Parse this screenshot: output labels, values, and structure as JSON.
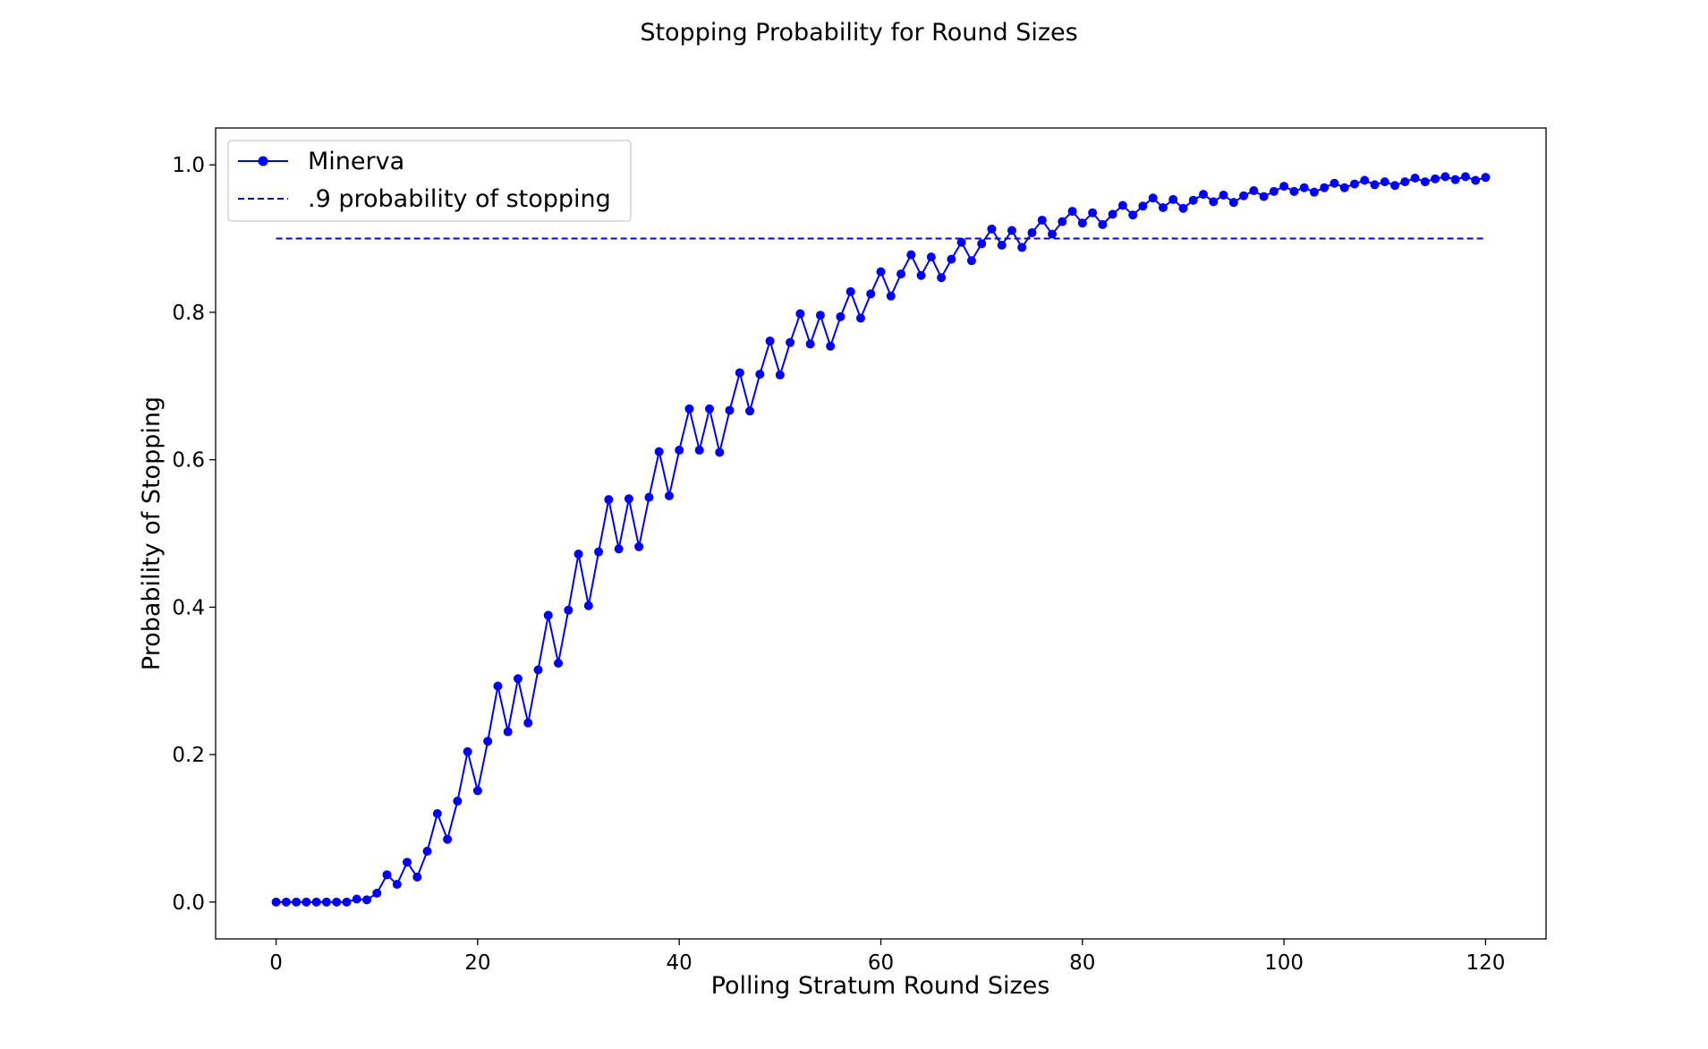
{
  "chart_data": {
    "type": "line",
    "title": "Stopping Probability for Round Sizes",
    "xlabel": "Polling Stratum Round Sizes",
    "ylabel": "Probability of Stopping",
    "xlim": [
      -6,
      126
    ],
    "ylim": [
      -0.05,
      1.05
    ],
    "xticks": [
      0,
      20,
      40,
      60,
      80,
      100,
      120
    ],
    "xtick_labels": [
      "0",
      "20",
      "40",
      "60",
      "80",
      "100",
      "120"
    ],
    "yticks": [
      0.0,
      0.2,
      0.4,
      0.6,
      0.8,
      1.0
    ],
    "ytick_labels": [
      "0.0",
      "0.2",
      "0.4",
      "0.6",
      "0.8",
      "1.0"
    ],
    "grid": false,
    "legend_position": "top-left",
    "series": [
      {
        "name": "Minerva",
        "style": "solid-line-circle-markers",
        "color": "#0000ff",
        "x": [
          0,
          1,
          2,
          3,
          4,
          5,
          6,
          7,
          8,
          9,
          10,
          11,
          12,
          13,
          14,
          15,
          16,
          17,
          18,
          19,
          20,
          21,
          22,
          23,
          24,
          25,
          26,
          27,
          28,
          29,
          30,
          31,
          32,
          33,
          34,
          35,
          36,
          37,
          38,
          39,
          40,
          41,
          42,
          43,
          44,
          45,
          46,
          47,
          48,
          49,
          50,
          51,
          52,
          53,
          54,
          55,
          56,
          57,
          58,
          59,
          60,
          61,
          62,
          63,
          64,
          65,
          66,
          67,
          68,
          69,
          70,
          71,
          72,
          73,
          74,
          75,
          76,
          77,
          78,
          79,
          80,
          81,
          82,
          83,
          84,
          85,
          86,
          87,
          88,
          89,
          90,
          91,
          92,
          93,
          94,
          95,
          96,
          97,
          98,
          99,
          100,
          101,
          102,
          103,
          104,
          105,
          106,
          107,
          108,
          109,
          110,
          111,
          112,
          113,
          114,
          115,
          116,
          117,
          118,
          119,
          120
        ],
        "y": [
          0.0,
          0.0,
          0.0,
          0.0,
          0.0,
          0.0,
          0.0,
          0.0,
          0.004,
          0.003,
          0.012,
          0.037,
          0.024,
          0.054,
          0.034,
          0.069,
          0.12,
          0.085,
          0.137,
          0.204,
          0.151,
          0.218,
          0.293,
          0.231,
          0.303,
          0.243,
          0.315,
          0.389,
          0.324,
          0.396,
          0.472,
          0.402,
          0.475,
          0.546,
          0.479,
          0.547,
          0.482,
          0.549,
          0.611,
          0.551,
          0.613,
          0.669,
          0.613,
          0.669,
          0.61,
          0.667,
          0.718,
          0.666,
          0.716,
          0.761,
          0.715,
          0.759,
          0.798,
          0.757,
          0.796,
          0.754,
          0.794,
          0.828,
          0.792,
          0.825,
          0.855,
          0.822,
          0.852,
          0.878,
          0.85,
          0.875,
          0.847,
          0.872,
          0.895,
          0.87,
          0.893,
          0.913,
          0.891,
          0.911,
          0.888,
          0.908,
          0.925,
          0.906,
          0.923,
          0.937,
          0.921,
          0.935,
          0.919,
          0.933,
          0.945,
          0.932,
          0.944,
          0.955,
          0.942,
          0.953,
          0.941,
          0.952,
          0.96,
          0.95,
          0.959,
          0.949,
          0.958,
          0.965,
          0.957,
          0.964,
          0.971,
          0.964,
          0.969,
          0.963,
          0.969,
          0.975,
          0.969,
          0.974,
          0.979,
          0.973,
          0.977,
          0.972,
          0.977,
          0.982,
          0.977,
          0.981,
          0.984,
          0.98,
          0.984,
          0.979,
          0.983
        ]
      },
      {
        "name": ".9 probability of stopping",
        "style": "dashed-line",
        "color": "#0000ff",
        "x": [
          0,
          120
        ],
        "y": [
          0.9,
          0.9
        ]
      }
    ]
  }
}
